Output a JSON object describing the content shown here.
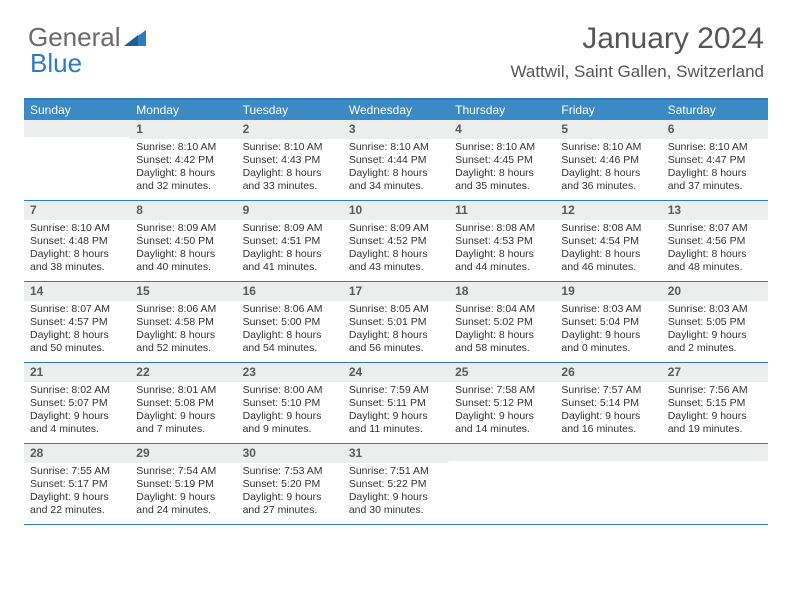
{
  "logo": {
    "part1": "General",
    "part2": "Blue"
  },
  "title": "January 2024",
  "location": "Wattwil, Saint Gallen, Switzerland",
  "colors": {
    "header_bg": "#3b8ac4",
    "border": "#2f7bbf",
    "daynum_bg": "#eceeee",
    "text": "#333333",
    "title_text": "#565656",
    "logo_gray": "#6a6a6a",
    "logo_blue": "#2f7bbf"
  },
  "weekdays": [
    "Sunday",
    "Monday",
    "Tuesday",
    "Wednesday",
    "Thursday",
    "Friday",
    "Saturday"
  ],
  "weeks": [
    [
      {
        "day": "",
        "lines": []
      },
      {
        "day": "1",
        "lines": [
          "Sunrise: 8:10 AM",
          "Sunset: 4:42 PM",
          "Daylight: 8 hours and 32 minutes."
        ]
      },
      {
        "day": "2",
        "lines": [
          "Sunrise: 8:10 AM",
          "Sunset: 4:43 PM",
          "Daylight: 8 hours and 33 minutes."
        ]
      },
      {
        "day": "3",
        "lines": [
          "Sunrise: 8:10 AM",
          "Sunset: 4:44 PM",
          "Daylight: 8 hours and 34 minutes."
        ]
      },
      {
        "day": "4",
        "lines": [
          "Sunrise: 8:10 AM",
          "Sunset: 4:45 PM",
          "Daylight: 8 hours and 35 minutes."
        ]
      },
      {
        "day": "5",
        "lines": [
          "Sunrise: 8:10 AM",
          "Sunset: 4:46 PM",
          "Daylight: 8 hours and 36 minutes."
        ]
      },
      {
        "day": "6",
        "lines": [
          "Sunrise: 8:10 AM",
          "Sunset: 4:47 PM",
          "Daylight: 8 hours and 37 minutes."
        ]
      }
    ],
    [
      {
        "day": "7",
        "lines": [
          "Sunrise: 8:10 AM",
          "Sunset: 4:48 PM",
          "Daylight: 8 hours and 38 minutes."
        ]
      },
      {
        "day": "8",
        "lines": [
          "Sunrise: 8:09 AM",
          "Sunset: 4:50 PM",
          "Daylight: 8 hours and 40 minutes."
        ]
      },
      {
        "day": "9",
        "lines": [
          "Sunrise: 8:09 AM",
          "Sunset: 4:51 PM",
          "Daylight: 8 hours and 41 minutes."
        ]
      },
      {
        "day": "10",
        "lines": [
          "Sunrise: 8:09 AM",
          "Sunset: 4:52 PM",
          "Daylight: 8 hours and 43 minutes."
        ]
      },
      {
        "day": "11",
        "lines": [
          "Sunrise: 8:08 AM",
          "Sunset: 4:53 PM",
          "Daylight: 8 hours and 44 minutes."
        ]
      },
      {
        "day": "12",
        "lines": [
          "Sunrise: 8:08 AM",
          "Sunset: 4:54 PM",
          "Daylight: 8 hours and 46 minutes."
        ]
      },
      {
        "day": "13",
        "lines": [
          "Sunrise: 8:07 AM",
          "Sunset: 4:56 PM",
          "Daylight: 8 hours and 48 minutes."
        ]
      }
    ],
    [
      {
        "day": "14",
        "lines": [
          "Sunrise: 8:07 AM",
          "Sunset: 4:57 PM",
          "Daylight: 8 hours and 50 minutes."
        ]
      },
      {
        "day": "15",
        "lines": [
          "Sunrise: 8:06 AM",
          "Sunset: 4:58 PM",
          "Daylight: 8 hours and 52 minutes."
        ]
      },
      {
        "day": "16",
        "lines": [
          "Sunrise: 8:06 AM",
          "Sunset: 5:00 PM",
          "Daylight: 8 hours and 54 minutes."
        ]
      },
      {
        "day": "17",
        "lines": [
          "Sunrise: 8:05 AM",
          "Sunset: 5:01 PM",
          "Daylight: 8 hours and 56 minutes."
        ]
      },
      {
        "day": "18",
        "lines": [
          "Sunrise: 8:04 AM",
          "Sunset: 5:02 PM",
          "Daylight: 8 hours and 58 minutes."
        ]
      },
      {
        "day": "19",
        "lines": [
          "Sunrise: 8:03 AM",
          "Sunset: 5:04 PM",
          "Daylight: 9 hours and 0 minutes."
        ]
      },
      {
        "day": "20",
        "lines": [
          "Sunrise: 8:03 AM",
          "Sunset: 5:05 PM",
          "Daylight: 9 hours and 2 minutes."
        ]
      }
    ],
    [
      {
        "day": "21",
        "lines": [
          "Sunrise: 8:02 AM",
          "Sunset: 5:07 PM",
          "Daylight: 9 hours and 4 minutes."
        ]
      },
      {
        "day": "22",
        "lines": [
          "Sunrise: 8:01 AM",
          "Sunset: 5:08 PM",
          "Daylight: 9 hours and 7 minutes."
        ]
      },
      {
        "day": "23",
        "lines": [
          "Sunrise: 8:00 AM",
          "Sunset: 5:10 PM",
          "Daylight: 9 hours and 9 minutes."
        ]
      },
      {
        "day": "24",
        "lines": [
          "Sunrise: 7:59 AM",
          "Sunset: 5:11 PM",
          "Daylight: 9 hours and 11 minutes."
        ]
      },
      {
        "day": "25",
        "lines": [
          "Sunrise: 7:58 AM",
          "Sunset: 5:12 PM",
          "Daylight: 9 hours and 14 minutes."
        ]
      },
      {
        "day": "26",
        "lines": [
          "Sunrise: 7:57 AM",
          "Sunset: 5:14 PM",
          "Daylight: 9 hours and 16 minutes."
        ]
      },
      {
        "day": "27",
        "lines": [
          "Sunrise: 7:56 AM",
          "Sunset: 5:15 PM",
          "Daylight: 9 hours and 19 minutes."
        ]
      }
    ],
    [
      {
        "day": "28",
        "lines": [
          "Sunrise: 7:55 AM",
          "Sunset: 5:17 PM",
          "Daylight: 9 hours and 22 minutes."
        ]
      },
      {
        "day": "29",
        "lines": [
          "Sunrise: 7:54 AM",
          "Sunset: 5:19 PM",
          "Daylight: 9 hours and 24 minutes."
        ]
      },
      {
        "day": "30",
        "lines": [
          "Sunrise: 7:53 AM",
          "Sunset: 5:20 PM",
          "Daylight: 9 hours and 27 minutes."
        ]
      },
      {
        "day": "31",
        "lines": [
          "Sunrise: 7:51 AM",
          "Sunset: 5:22 PM",
          "Daylight: 9 hours and 30 minutes."
        ]
      },
      {
        "day": "",
        "lines": []
      },
      {
        "day": "",
        "lines": []
      },
      {
        "day": "",
        "lines": []
      }
    ]
  ]
}
